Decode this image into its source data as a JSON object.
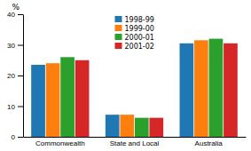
{
  "chart_data": {
    "type": "bar",
    "categories": [
      "Commonwealth",
      "State and Local",
      "Australia"
    ],
    "series": [
      {
        "name": "1998-99",
        "values": [
          23.5,
          7.2,
          30.5
        ]
      },
      {
        "name": "1999-00",
        "values": [
          24.0,
          7.2,
          31.5
        ]
      },
      {
        "name": "2000-01",
        "values": [
          26.0,
          6.2,
          32.0
        ]
      },
      {
        "name": "2001-02",
        "values": [
          25.0,
          6.2,
          30.5
        ]
      }
    ],
    "ylabel": "%",
    "ylim": [
      0,
      40
    ],
    "yticks": [
      0,
      10,
      20,
      30,
      40
    ],
    "grid": false,
    "legend": "upper center"
  }
}
